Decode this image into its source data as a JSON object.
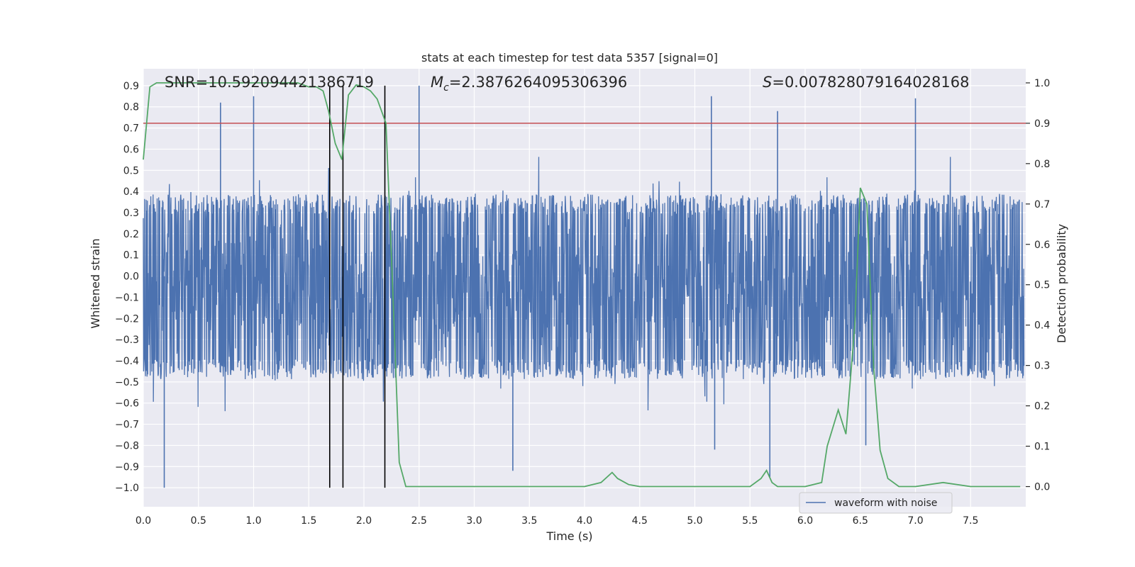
{
  "colors": {
    "plot_bg": "#eaeaf2",
    "grid": "#ffffff",
    "waveform": "#4c72b0",
    "probability": "#55a868",
    "threshold": "#c44e52",
    "marker": "#000000",
    "text": "#262626"
  },
  "chart_data": {
    "type": "line",
    "title": "stats at each timestep for test data 5357 [signal=0]",
    "xlabel": "Time (s)",
    "ylabel_left": "Whitened strain",
    "ylabel_right": "Detection probability",
    "xlim": [
      0.0,
      8.0
    ],
    "ylim_left": [
      -1.09,
      0.98
    ],
    "ylim_right": [
      -0.05,
      1.035
    ],
    "x_ticks": [
      "0.0",
      "0.5",
      "1.0",
      "1.5",
      "2.0",
      "2.5",
      "3.0",
      "3.5",
      "4.0",
      "4.5",
      "5.0",
      "5.5",
      "6.0",
      "6.5",
      "7.0",
      "7.5"
    ],
    "x_tick_values": [
      0.0,
      0.5,
      1.0,
      1.5,
      2.0,
      2.5,
      3.0,
      3.5,
      4.0,
      4.5,
      5.0,
      5.5,
      6.0,
      6.5,
      7.0,
      7.5
    ],
    "y_left_ticks": [
      "0.9",
      "0.8",
      "0.7",
      "0.6",
      "0.5",
      "0.4",
      "0.3",
      "0.2",
      "0.1",
      "0.0",
      "−0.1",
      "−0.2",
      "−0.3",
      "−0.4",
      "−0.5",
      "−0.6",
      "−0.7",
      "−0.8",
      "−0.9",
      "−1.0"
    ],
    "y_left_tick_values": [
      0.9,
      0.8,
      0.7,
      0.6,
      0.5,
      0.4,
      0.3,
      0.2,
      0.1,
      0.0,
      -0.1,
      -0.2,
      -0.3,
      -0.4,
      -0.5,
      -0.6,
      -0.7,
      -0.8,
      -0.9,
      -1.0
    ],
    "y_right_ticks": [
      "1.0",
      "0.9",
      "0.8",
      "0.7",
      "0.6",
      "0.5",
      "0.4",
      "0.3",
      "0.2",
      "0.1",
      "0.0"
    ],
    "y_right_tick_values": [
      1.0,
      0.9,
      0.8,
      0.7,
      0.6,
      0.5,
      0.4,
      0.3,
      0.2,
      0.1,
      0.0
    ],
    "annotations": {
      "snr": "SNR=10.592094421386719",
      "mc_symbol": "M",
      "mc_subscript": "c",
      "mc_value": "=2.3876264095306396",
      "s_symbol": "S",
      "s_value": "=0.007828079164028168"
    },
    "series": [
      {
        "name": "waveform with noise",
        "axis": "left",
        "kind": "noisy-waveform",
        "approx_band": [
          -0.43,
          0.33
        ],
        "notable_peaks": [
          {
            "x": 0.19,
            "y": -1.0
          },
          {
            "x": 0.7,
            "y": 0.82
          },
          {
            "x": 1.0,
            "y": 0.85
          },
          {
            "x": 2.5,
            "y": 0.9
          },
          {
            "x": 3.35,
            "y": -0.92
          },
          {
            "x": 5.15,
            "y": 0.85
          },
          {
            "x": 5.18,
            "y": -0.82
          },
          {
            "x": 5.68,
            "y": -0.95
          },
          {
            "x": 5.75,
            "y": 0.78
          },
          {
            "x": 6.55,
            "y": -0.8
          },
          {
            "x": 7.0,
            "y": 0.84
          }
        ]
      },
      {
        "name": "detection probability",
        "axis": "right",
        "x": [
          0.0,
          0.06,
          0.12,
          0.2,
          0.5,
          1.0,
          1.4,
          1.5,
          1.57,
          1.63,
          1.68,
          1.74,
          1.8,
          1.86,
          1.93,
          2.0,
          2.06,
          2.12,
          2.2,
          2.26,
          2.32,
          2.38,
          2.5,
          3.0,
          3.5,
          4.0,
          4.15,
          4.25,
          4.3,
          4.4,
          4.5,
          5.0,
          5.5,
          5.6,
          5.65,
          5.7,
          5.75,
          6.0,
          6.15,
          6.2,
          6.3,
          6.37,
          6.45,
          6.5,
          6.56,
          6.62,
          6.68,
          6.75,
          6.85,
          7.0,
          7.25,
          7.5,
          7.95
        ],
        "values": [
          0.81,
          0.99,
          1.0,
          1.0,
          1.0,
          1.0,
          1.0,
          0.99,
          0.99,
          0.98,
          0.93,
          0.85,
          0.81,
          0.97,
          0.995,
          0.99,
          0.98,
          0.96,
          0.9,
          0.5,
          0.06,
          0.0,
          0.0,
          0.0,
          0.0,
          0.0,
          0.01,
          0.035,
          0.02,
          0.005,
          0.0,
          0.0,
          0.0,
          0.02,
          0.04,
          0.01,
          0.0,
          0.0,
          0.01,
          0.1,
          0.19,
          0.13,
          0.4,
          0.74,
          0.7,
          0.3,
          0.09,
          0.02,
          0.0,
          0.0,
          0.01,
          0.0,
          0.0
        ]
      }
    ],
    "threshold_line": {
      "axis": "right",
      "value": 0.9
    },
    "vertical_markers": [
      1.69,
      1.81,
      2.19
    ],
    "vertical_marker_range": [
      -1.0,
      0.9
    ],
    "legend": {
      "label": "waveform with noise",
      "placement": "lower-right"
    }
  }
}
